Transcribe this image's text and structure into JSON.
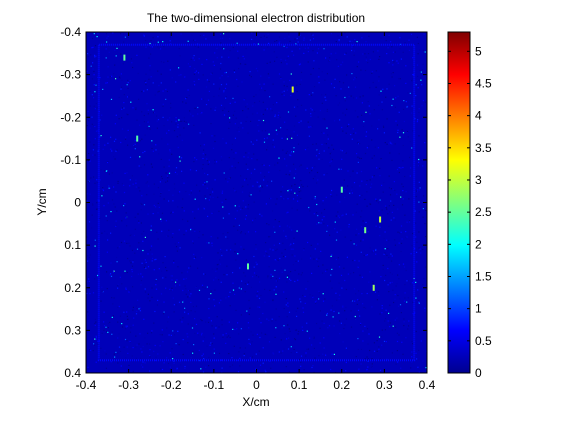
{
  "chart_data": {
    "type": "heatmap",
    "title": "The two-dimensional electron distribution",
    "xlabel": "X/cm",
    "ylabel": "Y/cm",
    "xlim": [
      -0.4,
      0.4
    ],
    "ylim": [
      -0.4,
      0.4
    ],
    "y_direction": "reverse",
    "xticks": [
      -0.4,
      -0.3,
      -0.2,
      -0.1,
      0,
      0.1,
      0.2,
      0.3,
      0.4
    ],
    "yticks": [
      -0.4,
      -0.3,
      -0.2,
      -0.1,
      0,
      0.1,
      0.2,
      0.3,
      0.4
    ],
    "xtick_labels": [
      "-0.4",
      "-0.3",
      "-0.2",
      "-0.1",
      "0",
      "0.1",
      "0.2",
      "0.3",
      "0.4"
    ],
    "ytick_labels": [
      "-0.4",
      "-0.3",
      "-0.2",
      "-0.1",
      "0",
      "0.1",
      "0.2",
      "0.3",
      "0.4"
    ],
    "colorbar": {
      "colormap": "jet",
      "clim": [
        0,
        5.3
      ],
      "ticks": [
        0,
        0.5,
        1,
        1.5,
        2,
        2.5,
        3,
        3.5,
        4,
        4.5,
        5
      ],
      "tick_labels": [
        "0",
        "0.5",
        "1",
        "1.5",
        "2",
        "2.5",
        "3",
        "3.5",
        "4",
        "4.5",
        "5"
      ]
    },
    "background_value": 0.3,
    "inner_border_extent": [
      -0.37,
      0.37
    ],
    "hotspots": [
      {
        "x": 0.085,
        "y": -0.265,
        "value": 3.8
      },
      {
        "x": 0.29,
        "y": 0.04,
        "value": 3.5
      },
      {
        "x": 0.275,
        "y": 0.2,
        "value": 3.2
      },
      {
        "x": -0.28,
        "y": -0.15,
        "value": 2.5
      },
      {
        "x": 0.255,
        "y": 0.065,
        "value": 2.8
      },
      {
        "x": -0.31,
        "y": -0.34,
        "value": 2.6
      },
      {
        "x": 0.2,
        "y": -0.03,
        "value": 2.5
      },
      {
        "x": -0.02,
        "y": 0.15,
        "value": 2.6
      }
    ]
  }
}
